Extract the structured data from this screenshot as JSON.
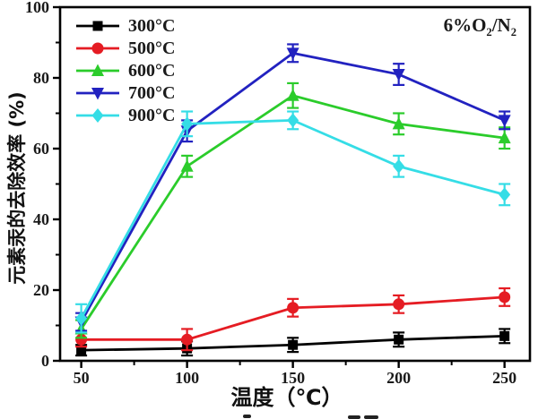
{
  "chart_data": {
    "type": "line",
    "title": "",
    "xlabel": "温度（℃）",
    "ylabel": "元素汞的去除效率 (%)",
    "annotation": {
      "segments": [
        {
          "t": "6%O"
        },
        {
          "t": "2",
          "sub": true
        },
        {
          "t": "/N"
        },
        {
          "t": "2",
          "sub": true
        }
      ]
    },
    "x": [
      50,
      100,
      150,
      200,
      250
    ],
    "xlim": [
      40,
      262
    ],
    "ylim": [
      0,
      100
    ],
    "xticks": [
      50,
      100,
      150,
      200,
      250
    ],
    "yticks": [
      0,
      20,
      40,
      60,
      80,
      100
    ],
    "xminor": [
      75,
      125,
      175,
      225
    ],
    "yminor": [
      10,
      30,
      50,
      70,
      90
    ],
    "grid": false,
    "legend_position": "top-left",
    "series": [
      {
        "name": "300°C",
        "color": "#000000",
        "marker": "square",
        "values": [
          3,
          3.5,
          4.5,
          6,
          7
        ],
        "errors": [
          1.5,
          2,
          2,
          2,
          2
        ]
      },
      {
        "name": "500°C",
        "color": "#e51c23",
        "marker": "circle",
        "values": [
          6,
          6,
          15,
          16,
          18
        ],
        "errors": [
          2,
          3,
          2.5,
          2.5,
          2.5
        ]
      },
      {
        "name": "600°C",
        "color": "#2bcc2b",
        "marker": "triangle-up",
        "values": [
          9,
          55,
          75,
          67,
          63
        ],
        "errors": [
          2.5,
          3,
          3.5,
          3,
          3
        ]
      },
      {
        "name": "700°C",
        "color": "#2222c0",
        "marker": "triangle-down",
        "values": [
          11,
          65,
          87,
          81,
          68
        ],
        "errors": [
          2.5,
          3,
          2.5,
          3,
          2.5
        ]
      },
      {
        "name": "900°C",
        "color": "#35dde6",
        "marker": "diamond",
        "values": [
          12,
          67,
          68,
          55,
          47
        ],
        "errors": [
          4,
          3.5,
          2.5,
          3,
          3
        ]
      }
    ]
  }
}
